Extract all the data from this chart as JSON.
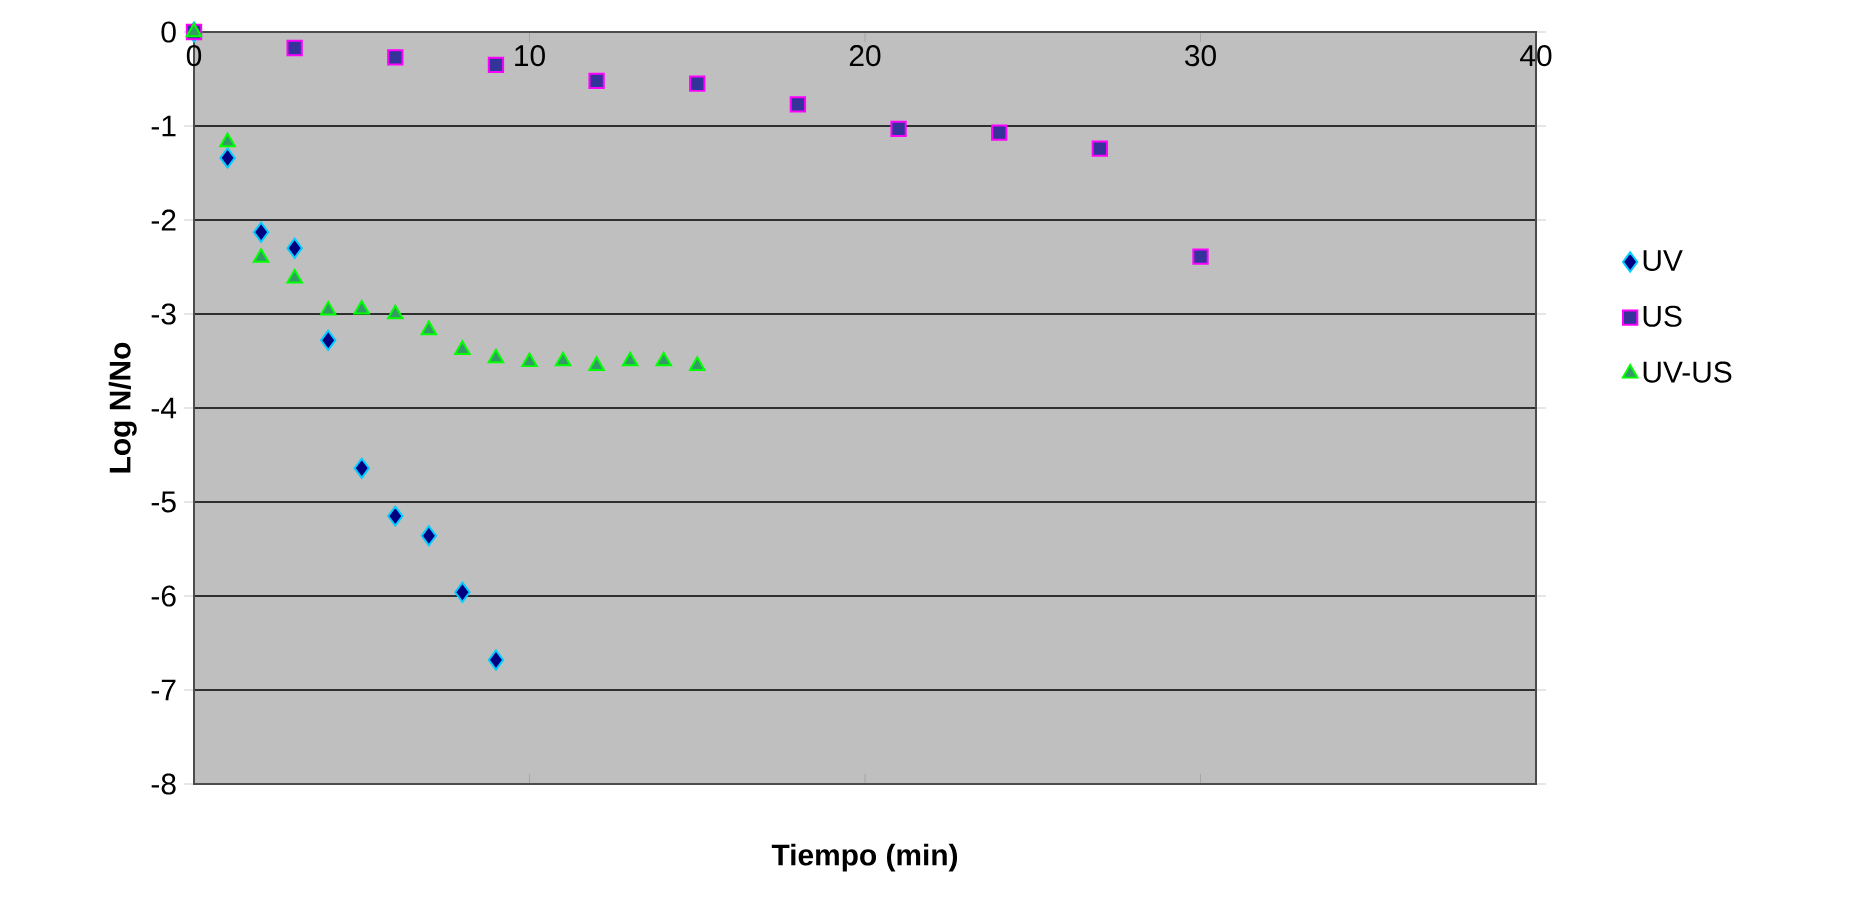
{
  "chart_data": {
    "type": "scatter",
    "xlabel": "Tiempo (min)",
    "ylabel": "Log N/No",
    "xlim": [
      0,
      40
    ],
    "ylim": [
      -8,
      0
    ],
    "xticks": [
      0,
      10,
      20,
      30,
      40
    ],
    "yticks": [
      0,
      -1,
      -2,
      -3,
      -4,
      -5,
      -6,
      -7,
      -8
    ],
    "grid": "y",
    "legend": "right",
    "series": [
      {
        "name": "UV",
        "color": "#000080",
        "marker": "diamond",
        "x": [
          0,
          1,
          2,
          3,
          4,
          5,
          6,
          7,
          8,
          9
        ],
        "values": [
          0,
          -1.34,
          -2.13,
          -2.3,
          -3.28,
          -4.64,
          -5.15,
          -5.36,
          -5.96,
          -6.68
        ]
      },
      {
        "name": "US",
        "color": "#333399",
        "marker": "square",
        "x": [
          0,
          3,
          6,
          9,
          12,
          15,
          18,
          21,
          24,
          27,
          30
        ],
        "values": [
          0,
          -0.17,
          -0.27,
          -0.35,
          -0.52,
          -0.55,
          -0.77,
          -1.03,
          -1.07,
          -1.24,
          -2.39
        ]
      },
      {
        "name": "UV-US",
        "color": "#339966",
        "marker": "triangle",
        "x": [
          0,
          1,
          2,
          3,
          4,
          5,
          6,
          7,
          8,
          9,
          10,
          11,
          12,
          13,
          14,
          15
        ],
        "values": [
          0,
          -1.17,
          -2.4,
          -2.62,
          -2.96,
          -2.95,
          -3.0,
          -3.17,
          -3.38,
          -3.47,
          -3.51,
          -3.5,
          -3.55,
          -3.5,
          -3.5,
          -3.55
        ]
      }
    ]
  }
}
